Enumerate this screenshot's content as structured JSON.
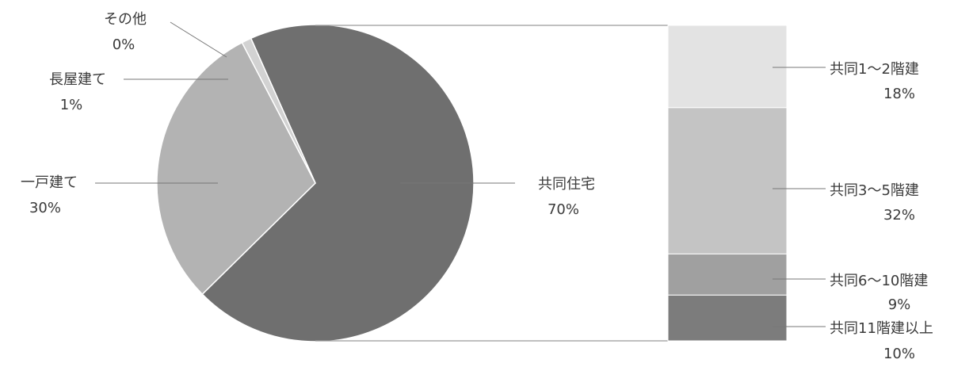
{
  "chart_data": [
    {
      "type": "pie",
      "categories": [
        "共同住宅",
        "一戸建て",
        "長屋建て",
        "その他"
      ],
      "values": [
        70,
        30,
        1,
        0
      ],
      "labels": [
        {
          "name": "共同住宅",
          "value": "70%"
        },
        {
          "name": "一戸建て",
          "value": "30%"
        },
        {
          "name": "長屋建て",
          "value": "1%"
        },
        {
          "name": "その他",
          "value": "0%"
        }
      ],
      "colors": [
        "#6f6f6f",
        "#b3b3b3",
        "#d2d2d2",
        "#e3e3e3"
      ]
    },
    {
      "type": "bar",
      "stacked": true,
      "categories": [
        "共同1～2階建",
        "共同3～5階建",
        "共同6～10階建",
        "共同11階建以上"
      ],
      "values": [
        18,
        32,
        9,
        10
      ],
      "labels": [
        {
          "name": "共同1～2階建",
          "value": "18%"
        },
        {
          "name": "共同3～5階建",
          "value": "32%"
        },
        {
          "name": "共同6～10階建",
          "value": "9%"
        },
        {
          "name": "共同11階建以上",
          "value": "10%"
        }
      ],
      "colors": [
        "#e3e3e3",
        "#c4c4c4",
        "#a0a0a0",
        "#7c7c7c"
      ]
    }
  ]
}
